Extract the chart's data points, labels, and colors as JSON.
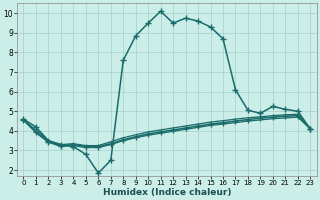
{
  "xlabel": "Humidex (Indice chaleur)",
  "background_color": "#cceee8",
  "grid_color": "#aad4ce",
  "line_color": "#1a6b6b",
  "xlim": [
    -0.5,
    23.5
  ],
  "ylim": [
    1.7,
    10.5
  ],
  "yticks": [
    2,
    3,
    4,
    5,
    6,
    7,
    8,
    9,
    10
  ],
  "xticks": [
    0,
    1,
    2,
    3,
    4,
    5,
    6,
    7,
    8,
    9,
    10,
    11,
    12,
    13,
    14,
    15,
    16,
    17,
    18,
    19,
    20,
    21,
    22,
    23
  ],
  "series": [
    {
      "x": [
        0,
        1,
        2,
        3,
        4,
        5,
        6,
        7,
        8,
        9,
        10,
        11,
        12,
        13,
        14,
        15,
        16,
        17,
        18,
        19,
        20,
        21,
        22,
        23
      ],
      "y": [
        4.6,
        4.2,
        3.5,
        3.3,
        3.2,
        2.8,
        1.85,
        2.5,
        7.6,
        8.85,
        9.5,
        10.1,
        9.5,
        9.75,
        9.6,
        9.3,
        8.7,
        6.1,
        5.05,
        4.9,
        5.25,
        5.1,
        5.0,
        4.1
      ],
      "marker": "+",
      "markersize": 4,
      "linestyle": "-",
      "linewidth": 1.1
    },
    {
      "x": [
        0,
        1,
        2,
        3,
        4,
        5,
        6,
        7,
        8,
        9,
        10,
        11,
        12,
        13,
        14,
        15,
        16,
        17,
        18,
        19,
        20,
        21,
        22,
        23
      ],
      "y": [
        4.55,
        3.95,
        3.45,
        3.25,
        3.3,
        3.2,
        3.2,
        3.35,
        3.55,
        3.7,
        3.85,
        3.95,
        4.05,
        4.15,
        4.25,
        4.35,
        4.42,
        4.5,
        4.58,
        4.65,
        4.7,
        4.75,
        4.78,
        4.1
      ],
      "marker": "+",
      "markersize": 4,
      "linestyle": "-",
      "linewidth": 1.1
    },
    {
      "x": [
        0,
        1,
        2,
        3,
        4,
        5,
        6,
        7,
        8,
        9,
        10,
        11,
        12,
        13,
        14,
        15,
        16,
        17,
        18,
        19,
        20,
        21,
        22,
        23
      ],
      "y": [
        4.55,
        4.05,
        3.5,
        3.3,
        3.35,
        3.25,
        3.25,
        3.45,
        3.65,
        3.8,
        3.95,
        4.05,
        4.15,
        4.25,
        4.35,
        4.45,
        4.52,
        4.6,
        4.67,
        4.72,
        4.78,
        4.82,
        4.85,
        4.1
      ],
      "marker": null,
      "markersize": 0,
      "linestyle": "-",
      "linewidth": 0.9
    },
    {
      "x": [
        0,
        1,
        2,
        3,
        4,
        5,
        6,
        7,
        8,
        9,
        10,
        11,
        12,
        13,
        14,
        15,
        16,
        17,
        18,
        19,
        20,
        21,
        22,
        23
      ],
      "y": [
        4.55,
        3.9,
        3.42,
        3.2,
        3.25,
        3.15,
        3.15,
        3.3,
        3.5,
        3.65,
        3.78,
        3.88,
        3.98,
        4.08,
        4.18,
        4.28,
        4.35,
        4.42,
        4.5,
        4.56,
        4.62,
        4.66,
        4.7,
        4.1
      ],
      "marker": null,
      "markersize": 0,
      "linestyle": "-",
      "linewidth": 0.9
    }
  ]
}
